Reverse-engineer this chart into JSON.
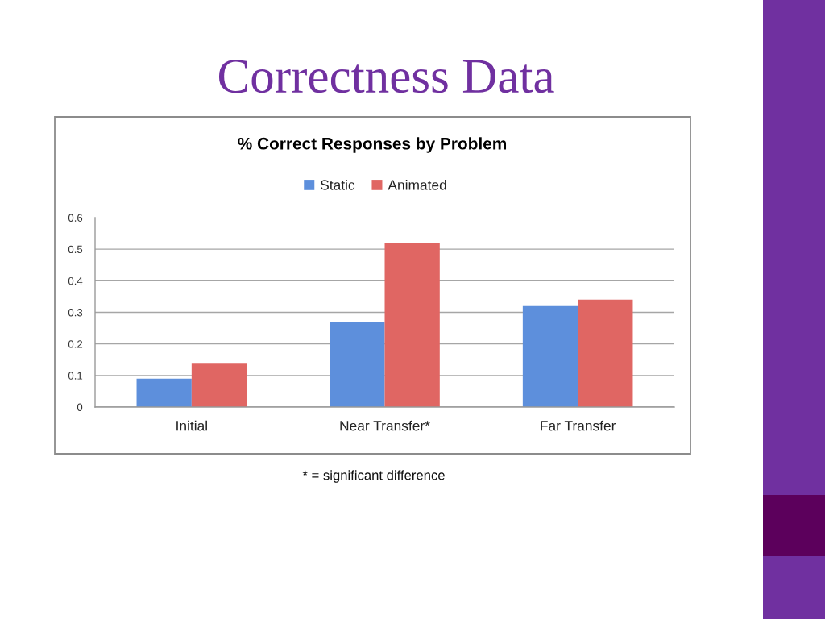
{
  "chart_data": {
    "type": "bar",
    "title": "Correctness Data",
    "subtitle": "% Correct Responses by Problem",
    "categories": [
      "Initial",
      "Near Transfer*",
      "Far Transfer"
    ],
    "series": [
      {
        "name": "Static",
        "color": "#5d8fdc",
        "values": [
          0.09,
          0.27,
          0.32
        ]
      },
      {
        "name": "Animated",
        "color": "#e06663",
        "values": [
          0.14,
          0.52,
          0.34
        ]
      }
    ],
    "ylim": [
      0,
      0.6
    ],
    "yticks": [
      0,
      0.1,
      0.2,
      0.3,
      0.4,
      0.5,
      0.6
    ],
    "grid": "y",
    "legend": "top",
    "annotations": [
      "* = significant difference"
    ]
  }
}
